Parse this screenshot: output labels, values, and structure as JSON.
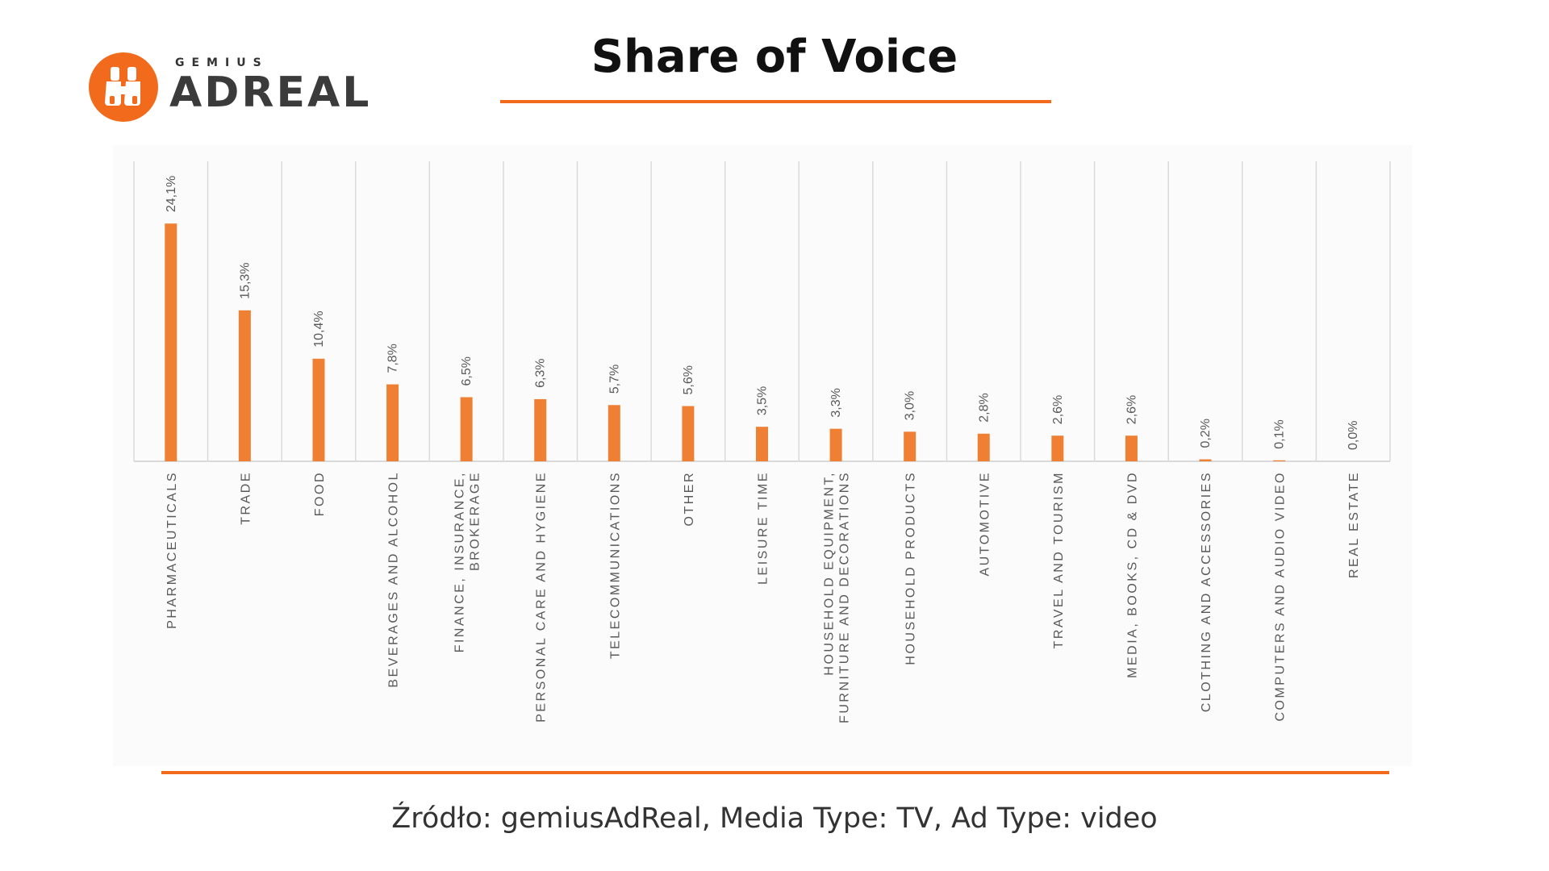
{
  "logo": {
    "icon_name": "binoculars-icon",
    "small_text": "GEMIUS",
    "big_text": "ADREAL",
    "accent_color": "#f26a1b"
  },
  "header": {
    "title": "Share of Voice"
  },
  "footer": {
    "source": "Źródło: gemiusAdReal, Media Type: TV, Ad Type: video"
  },
  "colors": {
    "accent": "#f26a1b",
    "bar": "#ef8033",
    "grid": "#d9d9d9",
    "label": "#595959"
  },
  "chart_data": {
    "type": "bar",
    "title": "Share of Voice",
    "xlabel": "",
    "ylabel": "",
    "ylim": [
      0,
      30
    ],
    "grid": "vertical",
    "legend": "none",
    "categories": [
      [
        "PHARMACEUTICALS"
      ],
      [
        "TRADE"
      ],
      [
        "FOOD"
      ],
      [
        "BEVERAGES AND ALCOHOL"
      ],
      [
        "FINANCE, INSURANCE,",
        "BROKERAGE"
      ],
      [
        "PERSONAL CARE AND HYGIENE"
      ],
      [
        "TELECOMMUNICATIONS"
      ],
      [
        "OTHER"
      ],
      [
        "LEISURE TIME"
      ],
      [
        "HOUSEHOLD EQUIPMENT,",
        "FURNITURE AND DECORATIONS"
      ],
      [
        "HOUSEHOLD PRODUCTS"
      ],
      [
        "AUTOMOTIVE"
      ],
      [
        "TRAVEL AND TOURISM"
      ],
      [
        "MEDIA, BOOKS, CD & DVD"
      ],
      [
        "CLOTHING AND ACCESSORIES"
      ],
      [
        "COMPUTERS AND AUDIO VIDEO"
      ],
      [
        "REAL ESTATE"
      ]
    ],
    "values": [
      24.1,
      15.3,
      10.4,
      7.8,
      6.5,
      6.3,
      5.7,
      5.6,
      3.5,
      3.3,
      3.0,
      2.8,
      2.6,
      2.6,
      0.2,
      0.1,
      0.0
    ],
    "data_labels": [
      "24,1%",
      "15,3%",
      "10,4%",
      "7,8%",
      "6,5%",
      "6,3%",
      "5,7%",
      "5,6%",
      "3,5%",
      "3,3%",
      "3,0%",
      "2,8%",
      "2,6%",
      "2,6%",
      "0,2%",
      "0,1%",
      "0,0%"
    ]
  }
}
